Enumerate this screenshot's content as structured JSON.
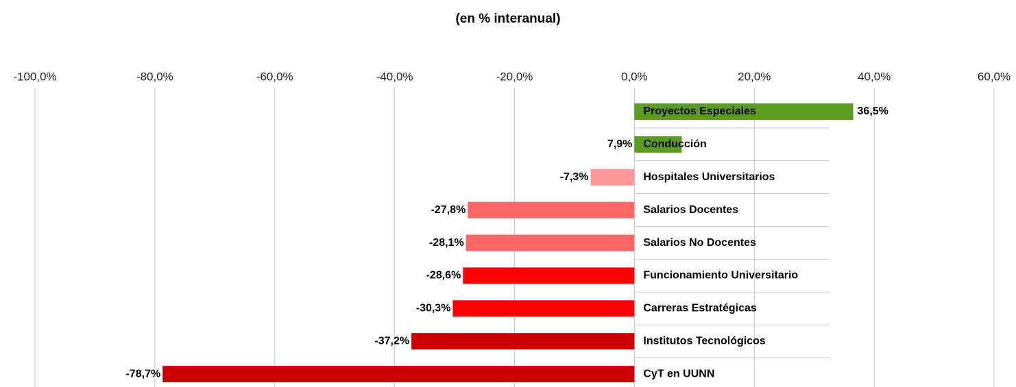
{
  "chart_data": {
    "type": "barh",
    "title": "(en % interanual)",
    "categories": [
      "Proyectos Especiales",
      "Conducción",
      "Hospitales Universitarios",
      "Salarios Docentes",
      "Salarios No Docentes",
      "Funcionamiento Universitario",
      "Carreras Estratégicas",
      "Institutos Tecnológicos",
      "CyT en UUNN"
    ],
    "values": [
      36.5,
      7.9,
      -7.3,
      -27.8,
      -28.1,
      -28.6,
      -30.3,
      -37.2,
      -78.7
    ],
    "value_labels": [
      "36,5%",
      "7,9%",
      "-7,3%",
      "-27,8%",
      "-28,1%",
      "-28,6%",
      "-30,3%",
      "-37,2%",
      "-78,7%"
    ],
    "colors": [
      "#5b9b1f",
      "#5b9b1f",
      "#ff9999",
      "#ff6666",
      "#ff6666",
      "#ff0000",
      "#ff0000",
      "#cc0000",
      "#cc0000"
    ],
    "xlim": [
      -100,
      60
    ],
    "xticks": [
      {
        "value": -100,
        "label": "-100,0%"
      },
      {
        "value": -80,
        "label": "-80,0%"
      },
      {
        "value": -60,
        "label": "-60,0%"
      },
      {
        "value": -40,
        "label": "-40,0%"
      },
      {
        "value": -20,
        "label": "-20,0%"
      },
      {
        "value": 0,
        "label": "0,0%"
      },
      {
        "value": 20,
        "label": "20,0%"
      },
      {
        "value": 40,
        "label": "40,0%"
      },
      {
        "value": 60,
        "label": "60,0%"
      }
    ],
    "grid": true
  }
}
